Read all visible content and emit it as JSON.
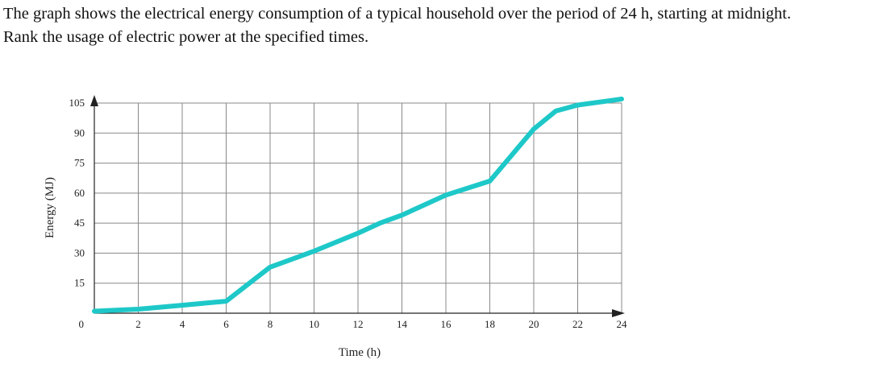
{
  "question": {
    "line1": "The graph shows the electrical energy consumption of a typical household over the period of 24 h, starting at midnight.",
    "line2": "Rank the usage of electric power at the specified times."
  },
  "chart_data": {
    "type": "line",
    "xlabel": "Time (h)",
    "ylabel": "Energy (MJ)",
    "xlim": [
      0,
      24
    ],
    "ylim": [
      0,
      105
    ],
    "x_ticks": [
      0,
      2,
      4,
      6,
      8,
      10,
      12,
      14,
      16,
      18,
      20,
      22,
      24
    ],
    "y_ticks": [
      0,
      15,
      30,
      45,
      60,
      75,
      90,
      105
    ],
    "x_tick_labels": [
      "2",
      "4",
      "6",
      "8",
      "10",
      "12",
      "14",
      "16",
      "18",
      "20",
      "22",
      "24"
    ],
    "y_tick_labels": [
      "15",
      "30",
      "45",
      "60",
      "75",
      "90",
      "105"
    ],
    "origin_label": "0",
    "grid": true,
    "line_color": "#1ec8c8",
    "grid_color": "#888888",
    "series": [
      {
        "x": [
          0,
          2,
          4,
          6,
          8,
          10,
          12,
          13,
          14,
          16,
          18,
          20,
          21,
          22,
          24
        ],
        "y": [
          1,
          2,
          4,
          6,
          23,
          31,
          40,
          45,
          49,
          59,
          66,
          92,
          101,
          104,
          107
        ]
      }
    ]
  }
}
